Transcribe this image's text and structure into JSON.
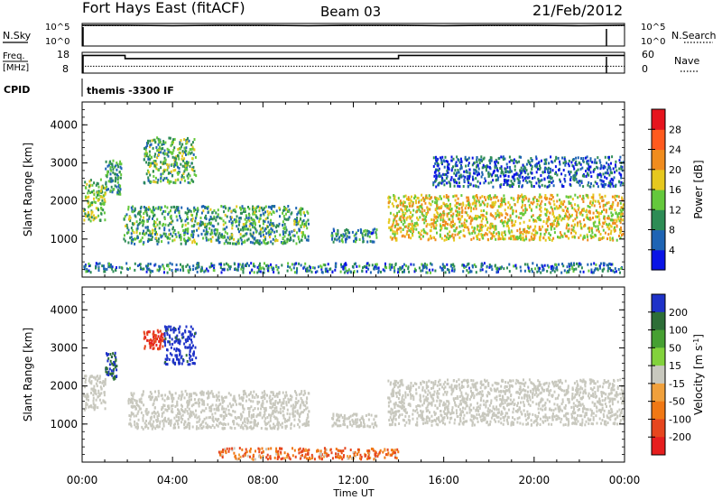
{
  "header": {
    "station": "Fort Hays East (fitACF)",
    "beam": "Beam 03",
    "date": "21/Feb/2012"
  },
  "noise_panel": {
    "left_label": "N.Sky",
    "left_ticks": [
      "10^5",
      "10^0"
    ],
    "right_label": "N.Search",
    "right_ticks": [
      "10^5",
      "10^0"
    ]
  },
  "freq_panel": {
    "left_label_1": "Freq.",
    "left_label_2": "[MHz]",
    "left_ticks": [
      "18",
      "8"
    ],
    "right_label": "Nave",
    "right_ticks": [
      "60",
      "0"
    ]
  },
  "cpid": {
    "label": "CPID",
    "value": "themis -3300 IF"
  },
  "x_axis": {
    "label": "Time UT",
    "ticks": [
      "00:00",
      "04:00",
      "08:00",
      "12:00",
      "16:00",
      "20:00",
      "00:00"
    ]
  },
  "chart_data": [
    {
      "type": "line",
      "title": "N.Sky / N.Search",
      "x_unit": "hours UT",
      "xlim": [
        0,
        24
      ],
      "ylim_log10": [
        0,
        5
      ],
      "series": [
        {
          "name": "N.Sky",
          "style": "solid",
          "x": [
            0,
            2,
            4,
            6,
            8,
            10,
            12,
            14,
            16,
            18,
            20,
            22,
            24
          ],
          "log10_values": [
            4.6,
            4.6,
            4.5,
            4.6,
            4.6,
            4.5,
            4.6,
            4.6,
            4.5,
            4.6,
            4.6,
            4.5,
            4.6
          ]
        },
        {
          "name": "N.Search",
          "style": "dotted",
          "x": [
            0,
            4,
            8,
            12,
            16,
            20,
            24
          ],
          "log10_values": [
            4.5,
            4.5,
            4.5,
            4.5,
            4.5,
            4.5,
            4.5
          ]
        }
      ]
    },
    {
      "type": "line",
      "title": "Freq. / Nave",
      "x_unit": "hours UT",
      "xlim": [
        0,
        24
      ],
      "ylim_freq": [
        8,
        18
      ],
      "ylim_nave": [
        0,
        60
      ],
      "series": [
        {
          "name": "Freq. [MHz]",
          "style": "solid",
          "x": [
            0,
            1.9,
            1.9,
            14.0,
            14.0,
            24
          ],
          "values": [
            16.5,
            16.5,
            15.0,
            15.0,
            16.5,
            16.5
          ]
        },
        {
          "name": "Nave",
          "style": "dotted",
          "x": [
            0,
            24
          ],
          "values": [
            20,
            20
          ]
        }
      ]
    },
    {
      "type": "heatmap",
      "title": "Power",
      "ylabel": "Slant Range [km]",
      "xlabel": "Time UT",
      "xlim": [
        0,
        24
      ],
      "ylim": [
        0,
        4600
      ],
      "yticks": [
        1000,
        2000,
        3000,
        4000
      ],
      "colorbar": {
        "label": "Power [dB]",
        "ticks": [
          "4",
          "8",
          "12",
          "16",
          "20",
          "24",
          "28"
        ],
        "range": [
          0,
          32
        ],
        "colors": [
          "#0a14e6",
          "#1e64b4",
          "#2d8c55",
          "#64c83c",
          "#e6c81e",
          "#f08c1e",
          "#ff5a1e",
          "#e6141e"
        ]
      },
      "regions": [
        {
          "t0": 0.0,
          "t1": 1.0,
          "r0": 1500,
          "r1": 2600,
          "level": 14
        },
        {
          "t0": 1.0,
          "t1": 1.7,
          "r0": 2200,
          "r1": 3100,
          "level": 10
        },
        {
          "t0": 2.7,
          "t1": 5.0,
          "r0": 2500,
          "r1": 3700,
          "level": 12
        },
        {
          "t0": 1.8,
          "t1": 10.0,
          "r0": 900,
          "r1": 1900,
          "level": 11
        },
        {
          "t0": 11.0,
          "t1": 13.0,
          "r0": 950,
          "r1": 1300,
          "level": 9
        },
        {
          "t0": 13.5,
          "t1": 24.0,
          "r0": 1000,
          "r1": 2200,
          "level": 18
        },
        {
          "t0": 15.5,
          "t1": 24.0,
          "r0": 2400,
          "r1": 3200,
          "level": 6
        },
        {
          "t0": 0.0,
          "t1": 24.0,
          "r0": 150,
          "r1": 400,
          "level": 8
        }
      ]
    },
    {
      "type": "heatmap",
      "title": "Velocity",
      "ylabel": "Slant Range [km]",
      "xlabel": "Time UT",
      "xlim": [
        0,
        24
      ],
      "ylim": [
        0,
        4600
      ],
      "yticks": [
        1000,
        2000,
        3000,
        4000
      ],
      "colorbar": {
        "label": "Velocity [m s^-1]",
        "ticks": [
          "200",
          "100",
          "50",
          "15",
          "-15",
          "-50",
          "-100",
          "-200"
        ],
        "range": [
          -250,
          250
        ],
        "colors": [
          "#1e32c8",
          "#2d6e37",
          "#46a032",
          "#82d23c",
          "#c8c8be",
          "#f0a03c",
          "#f07814",
          "#e6461e",
          "#e61e1e"
        ]
      },
      "regions": [
        {
          "t0": 0.0,
          "t1": 1.0,
          "r0": 1400,
          "r1": 2300,
          "value": 0
        },
        {
          "t0": 1.0,
          "t1": 1.5,
          "r0": 2200,
          "r1": 2900,
          "value": 150
        },
        {
          "t0": 2.7,
          "t1": 3.6,
          "r0": 3000,
          "r1": 3500,
          "value": -150
        },
        {
          "t0": 3.6,
          "t1": 5.0,
          "r0": 2600,
          "r1": 3600,
          "value": 200
        },
        {
          "t0": 2.0,
          "t1": 10.0,
          "r0": 900,
          "r1": 1900,
          "value": 0
        },
        {
          "t0": 11.0,
          "t1": 13.0,
          "r0": 950,
          "r1": 1300,
          "value": 0
        },
        {
          "t0": 13.5,
          "t1": 24.0,
          "r0": 1000,
          "r1": 2200,
          "value": 0
        },
        {
          "t0": 6.0,
          "t1": 14.0,
          "r0": 100,
          "r1": 400,
          "value": -60
        }
      ]
    }
  ]
}
